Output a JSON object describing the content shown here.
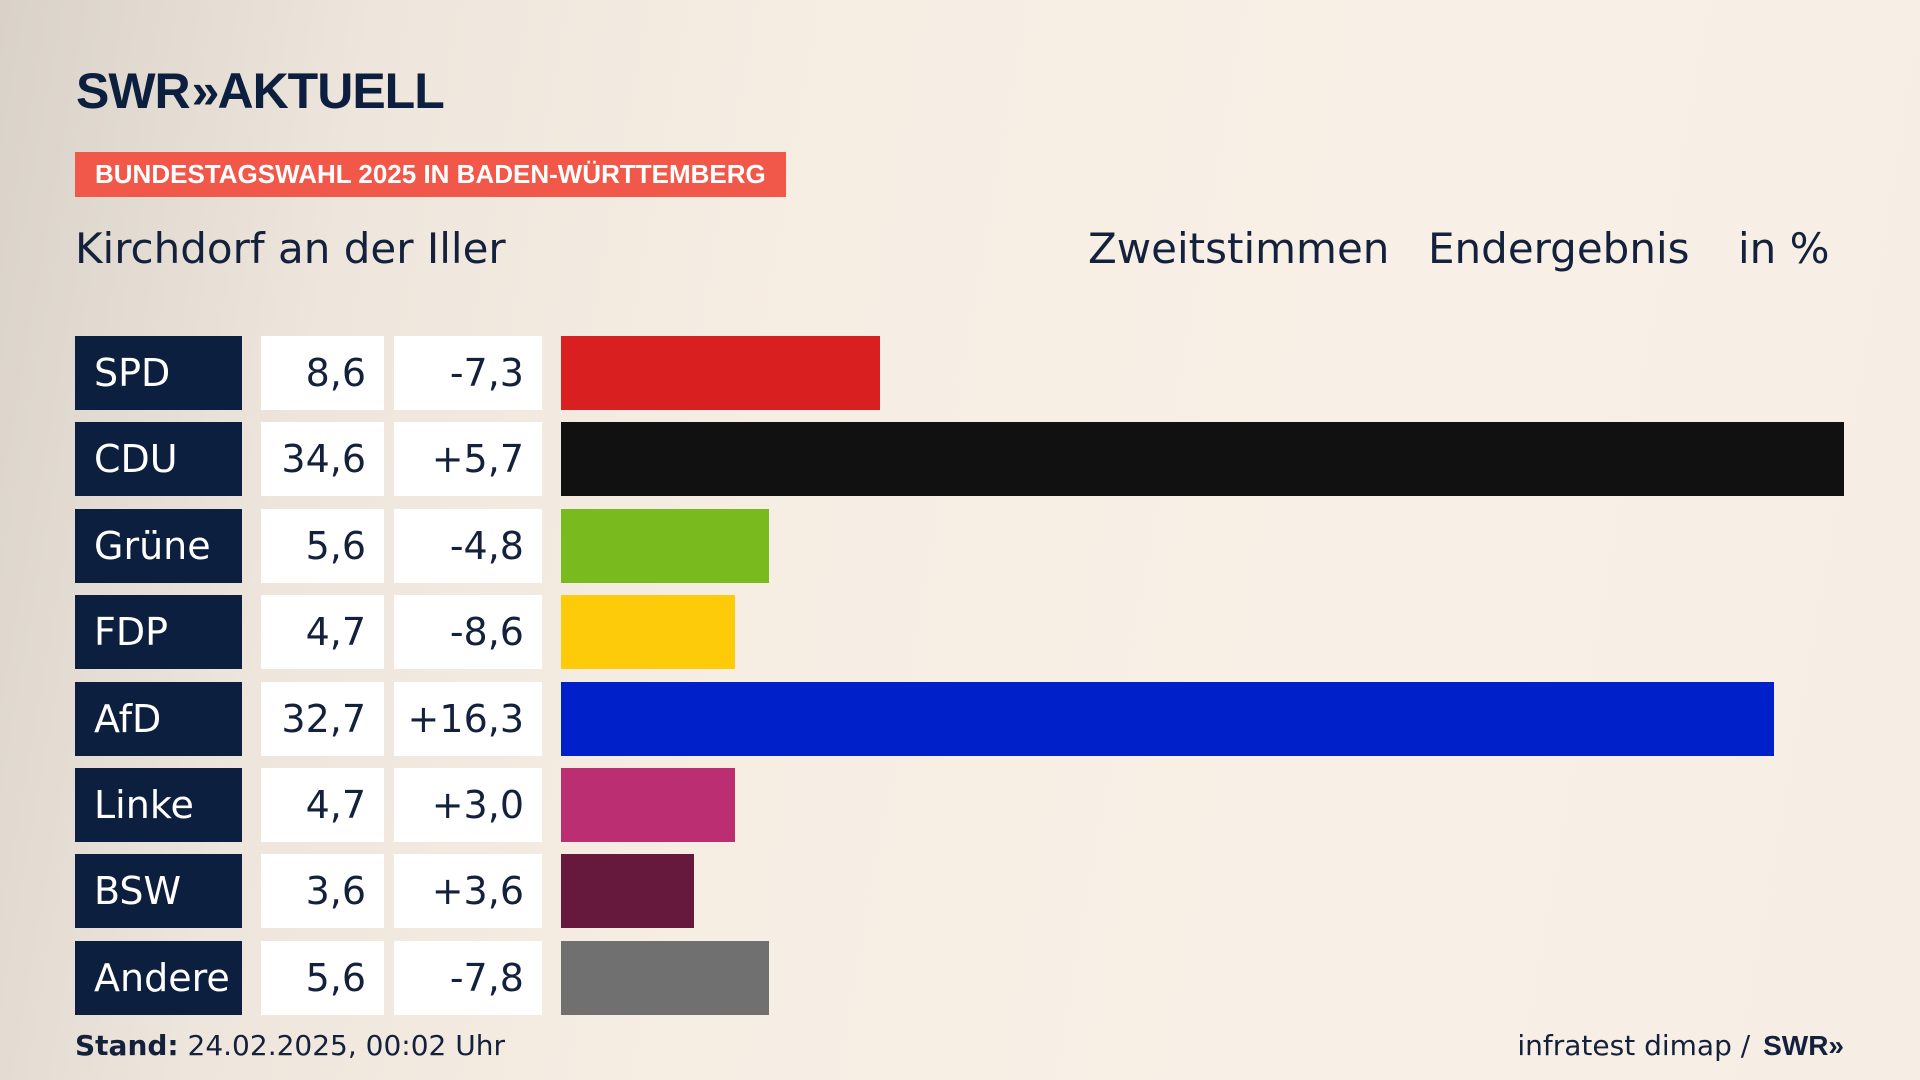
{
  "header": {
    "logo_text": "SWR",
    "logo_chevrons": "»",
    "logo_suffix": "AKTUELL",
    "banner": "BUNDESTAGSWAHL 2025 IN BADEN-WÜRTTEMBERG",
    "place": "Kirchdorf an der Iller",
    "vote_type": "Zweitstimmen",
    "result_type": "Endergebnis",
    "unit": "in %"
  },
  "colors": {
    "SPD": "#d91f20",
    "CDU": "#111111",
    "Grüne": "#79bb1e",
    "FDP": "#fecb0a",
    "AfD": "#0021c9",
    "Linke": "#bb2f72",
    "BSW": "#66183d",
    "Andere": "#707070"
  },
  "chart_data": {
    "type": "bar",
    "orientation": "horizontal",
    "categories": [
      "SPD",
      "CDU",
      "Grüne",
      "FDP",
      "AfD",
      "Linke",
      "BSW",
      "Andere"
    ],
    "values": [
      8.6,
      34.6,
      5.6,
      4.7,
      32.7,
      4.7,
      3.6,
      5.6
    ],
    "value_labels": [
      "8,6",
      "34,6",
      "5,6",
      "4,7",
      "32,7",
      "4,7",
      "3,6",
      "5,6"
    ],
    "change_labels": [
      "-7,3",
      "+5,7",
      "-4,8",
      "-8,6",
      "+16,3",
      "+3,0",
      "+3,6",
      "-7,8"
    ],
    "changes": [
      -7.3,
      5.7,
      -4.8,
      -8.6,
      16.3,
      3.0,
      3.6,
      -7.8
    ],
    "xlim": [
      0,
      34.6
    ],
    "grid": false
  },
  "footer": {
    "stand_label": "Stand:",
    "stand_value": "24.02.2025, 00:02 Uhr",
    "source": "infratest dimap /",
    "source_logo": "SWR"
  }
}
